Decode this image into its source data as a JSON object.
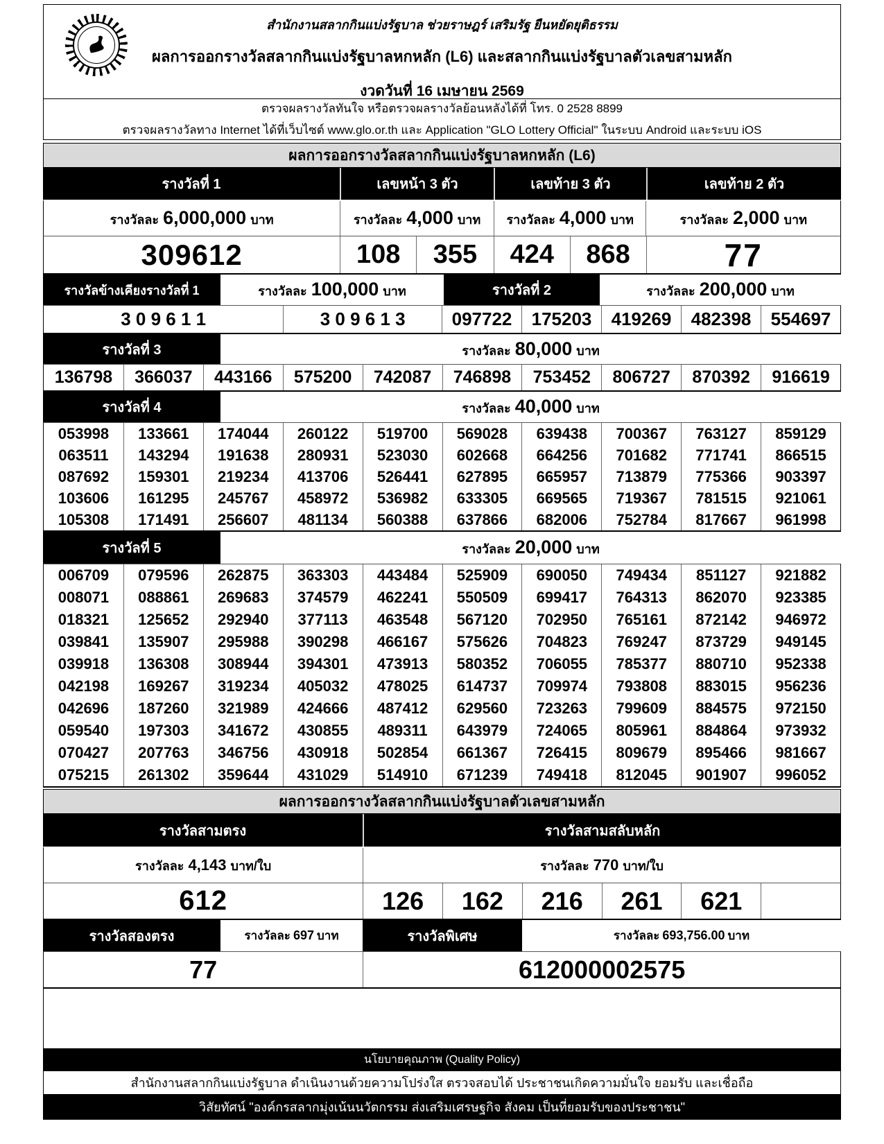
{
  "header": {
    "motto": "สำนักงานสลากกินแบ่งรัฐบาล  ช่วยราษฎร์  เสริมรัฐ  ยืนหยัดยุติธรรม",
    "title": "ผลการออกรางวัลสลากกินแบ่งรัฐบาลหกหลัก (L6) และสลากกินแบ่งรัฐบาลตัวเลขสามหลัก",
    "draw_date": "งวดวันที่ 16 เมษายน 2569",
    "logo": "glo-seal"
  },
  "contact": {
    "line1": "ตรวจผลรางวัลทันใจ  หรือตรวจผลรางวัลย้อนหลังได้ที่  โทร. 0 2528 8899",
    "line2": "ตรวจผลรางวัลทาง Internet ได้ที่เว็บไซต์  www.glo.or.th และ Application \"GLO Lottery Official\" ในระบบ Android และระบบ iOS"
  },
  "colors": {
    "bar_black": "#000000",
    "section_gray": "#d9d9d9",
    "text": "#000000"
  },
  "l6": {
    "section_title": "ผลการออกรางวัลสลากกินแบ่งรัฐบาลหกหลัก (L6)",
    "prize1": {
      "label": "รางวัลที่ 1",
      "amount": {
        "prefix": "รางวัลละ",
        "value": "6,000,000",
        "suffix": "บาท"
      },
      "number": "309612"
    },
    "front3": {
      "label": "เลขหน้า 3 ตัว",
      "amount": {
        "prefix": "รางวัลละ",
        "value": "4,000",
        "suffix": "บาท"
      },
      "numbers": [
        "108",
        "355"
      ]
    },
    "last3": {
      "label": "เลขท้าย 3 ตัว",
      "amount": {
        "prefix": "รางวัลละ",
        "value": "4,000",
        "suffix": "บาท"
      },
      "numbers": [
        "424",
        "868"
      ]
    },
    "last2": {
      "label": "เลขท้าย 2 ตัว",
      "amount": {
        "prefix": "รางวัลละ",
        "value": "2,000",
        "suffix": "บาท"
      },
      "number": "77"
    },
    "adjacent": {
      "label": "รางวัลข้างเคียงรางวัลที่ 1",
      "amount": {
        "prefix": "รางวัลละ",
        "value": "100,000",
        "suffix": "บาท"
      },
      "numbers": [
        "3 0 9 6 1 1",
        "3 0 9 6 1 3"
      ]
    },
    "prize2": {
      "label": "รางวัลที่  2",
      "amount": {
        "prefix": "รางวัลละ",
        "value": "200,000",
        "suffix": "บาท"
      },
      "numbers": [
        "097722",
        "175203",
        "419269",
        "482398",
        "554697"
      ]
    },
    "prize3": {
      "label": "รางวัลที่  3",
      "amount": {
        "prefix": "รางวัลละ",
        "value": "80,000",
        "suffix": "บาท"
      },
      "numbers": [
        "136798",
        "366037",
        "443166",
        "575200",
        "742087",
        "746898",
        "753452",
        "806727",
        "870392",
        "916619"
      ]
    },
    "prize4": {
      "label": "รางวัลที่  4",
      "amount": {
        "prefix": "รางวัลละ",
        "value": "40,000",
        "suffix": "บาท"
      },
      "rows": [
        [
          "053998",
          "133661",
          "174044",
          "260122",
          "519700",
          "569028",
          "639438",
          "700367",
          "763127",
          "859129"
        ],
        [
          "063511",
          "143294",
          "191638",
          "280931",
          "523030",
          "602668",
          "664256",
          "701682",
          "771741",
          "866515"
        ],
        [
          "087692",
          "159301",
          "219234",
          "413706",
          "526441",
          "627895",
          "665957",
          "713879",
          "775366",
          "903397"
        ],
        [
          "103606",
          "161295",
          "245767",
          "458972",
          "536982",
          "633305",
          "669565",
          "719367",
          "781515",
          "921061"
        ],
        [
          "105308",
          "171491",
          "256607",
          "481134",
          "560388",
          "637866",
          "682006",
          "752784",
          "817667",
          "961998"
        ]
      ]
    },
    "prize5": {
      "label": "รางวัลที่  5",
      "amount": {
        "prefix": "รางวัลละ",
        "value": "20,000",
        "suffix": "บาท"
      },
      "rows": [
        [
          "006709",
          "079596",
          "262875",
          "363303",
          "443484",
          "525909",
          "690050",
          "749434",
          "851127",
          "921882"
        ],
        [
          "008071",
          "088861",
          "269683",
          "374579",
          "462241",
          "550509",
          "699417",
          "764313",
          "862070",
          "923385"
        ],
        [
          "018321",
          "125652",
          "292940",
          "377113",
          "463548",
          "567120",
          "702950",
          "765161",
          "872142",
          "946972"
        ],
        [
          "039841",
          "135907",
          "295988",
          "390298",
          "466167",
          "575626",
          "704823",
          "769247",
          "873729",
          "949145"
        ],
        [
          "039918",
          "136308",
          "308944",
          "394301",
          "473913",
          "580352",
          "706055",
          "785377",
          "880710",
          "952338"
        ],
        [
          "042198",
          "169267",
          "319234",
          "405032",
          "478025",
          "614737",
          "709974",
          "793808",
          "883015",
          "956236"
        ],
        [
          "042696",
          "187260",
          "321989",
          "424666",
          "487412",
          "629560",
          "723263",
          "799609",
          "884575",
          "972150"
        ],
        [
          "059540",
          "197303",
          "341672",
          "430855",
          "489311",
          "643979",
          "724065",
          "805961",
          "884864",
          "973932"
        ],
        [
          "070427",
          "207763",
          "346756",
          "430918",
          "502854",
          "661367",
          "726415",
          "809679",
          "895466",
          "981667"
        ],
        [
          "075215",
          "261302",
          "359644",
          "431029",
          "514910",
          "671239",
          "749418",
          "812045",
          "901907",
          "996052"
        ]
      ]
    }
  },
  "n3": {
    "section_title": "ผลการออกรางวัลสลากกินแบ่งรัฐบาลตัวเลขสามหลัก",
    "three_straight": {
      "label": "รางวัลสามตรง",
      "amount": {
        "prefix": "รางวัลละ",
        "value": "4,143",
        "suffix": "บาท/ใบ"
      },
      "number": "612"
    },
    "three_permuted": {
      "label": "รางวัลสามสลับหลัก",
      "amount": {
        "prefix": "รางวัลละ",
        "value": "770",
        "suffix": "บาท/ใบ"
      },
      "numbers": [
        "126",
        "162",
        "216",
        "261",
        "621"
      ]
    },
    "two_straight": {
      "label": "รางวัลสองตรง",
      "amount": {
        "prefix": "รางวัลละ",
        "value": "697",
        "suffix": "บาท"
      },
      "number": "77"
    },
    "special": {
      "label": "รางวัลพิเศษ",
      "amount": {
        "prefix": "รางวัลละ",
        "value": "693,756.00",
        "suffix": "บาท"
      },
      "number": "612000002575"
    }
  },
  "footer": {
    "policy_title": "นโยบายคุณภาพ (Quality Policy)",
    "policy_text": "สำนักงานสลากกินแบ่งรัฐบาล ดำเนินงานด้วยความโปร่งใส ตรวจสอบได้ ประชาชนเกิดความมั่นใจ ยอมรับ และเชื่อถือ",
    "vision_text": "วิสัยทัศน์ \"องค์กรสลากมุ่งเน้นนวัตกรรม ส่งเสริมเศรษฐกิจ สังคม เป็นที่ยอมรับของประชาชน\""
  }
}
